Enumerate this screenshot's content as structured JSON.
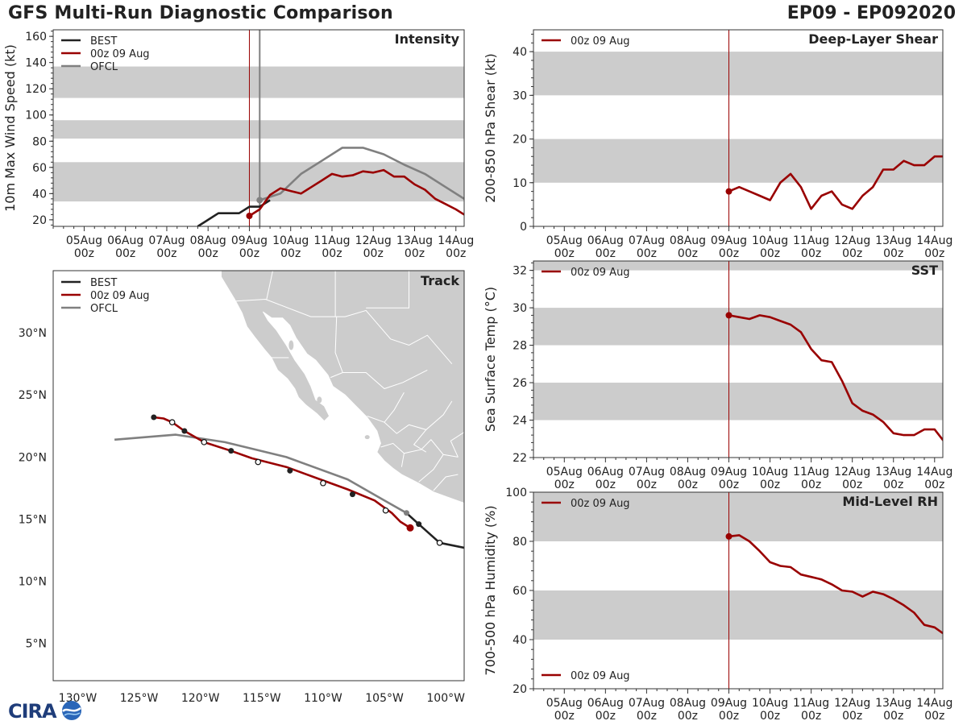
{
  "header": {
    "title": "GFS Multi-Run Diagnostic Comparison",
    "storm_id": "EP09 - EP092020"
  },
  "colors": {
    "best": "#222222",
    "run": "#990000",
    "ofcl": "#808080",
    "band": "#cccccc",
    "land": "#cccccc"
  },
  "time_axis": {
    "days": [
      "05Aug",
      "06Aug",
      "07Aug",
      "08Aug",
      "09Aug",
      "10Aug",
      "11Aug",
      "12Aug",
      "13Aug",
      "14Aug"
    ],
    "hour_label": "00z",
    "range": [
      -0.75,
      9.2
    ],
    "init_time": 4.0
  },
  "logo": {
    "text": "CIRA"
  },
  "chart_data": [
    {
      "id": "intensity",
      "type": "line",
      "title": "Intensity",
      "ylabel": "10m Max Wind Speed (kt)",
      "ylim": [
        15,
        165
      ],
      "yticks": [
        20,
        40,
        60,
        80,
        100,
        120,
        140,
        160
      ],
      "bands": [
        [
          34,
          64
        ],
        [
          82,
          96
        ],
        [
          113,
          137
        ]
      ],
      "extra_vline": 4.25,
      "legend": [
        "BEST",
        "00z 09 Aug",
        "OFCL"
      ],
      "series": [
        {
          "name": "BEST",
          "color": "best",
          "x": [
            2.75,
            3.0,
            3.25,
            3.5,
            3.75,
            4.0,
            4.25,
            4.5
          ],
          "y": [
            15,
            20,
            25,
            25,
            25,
            30,
            30,
            35
          ]
        },
        {
          "name": "OFCL",
          "color": "ofcl",
          "x": [
            4.25,
            4.75,
            5.25,
            5.75,
            6.25,
            6.75,
            7.25,
            7.75,
            8.25,
            8.75,
            9.25
          ],
          "y": [
            35,
            40,
            55,
            65,
            75,
            75,
            70,
            62,
            55,
            45,
            35
          ]
        },
        {
          "name": "00z 09 Aug",
          "color": "run",
          "x": [
            4.0,
            4.25,
            4.5,
            4.75,
            5.0,
            5.25,
            5.5,
            5.75,
            6.0,
            6.25,
            6.5,
            6.75,
            7.0,
            7.25,
            7.5,
            7.75,
            8.0,
            8.25,
            8.5,
            8.75,
            9.0,
            9.25
          ],
          "y": [
            23,
            28,
            39,
            44,
            42,
            40,
            45,
            50,
            55,
            53,
            54,
            57,
            56,
            58,
            53,
            53,
            47,
            43,
            36,
            32,
            28,
            23
          ]
        }
      ],
      "markers": [
        {
          "color": "ofcl",
          "x": 4.25,
          "y": 35
        },
        {
          "color": "run",
          "x": 4.0,
          "y": 23
        }
      ]
    },
    {
      "id": "shear",
      "type": "line",
      "title": "Deep-Layer Shear",
      "ylabel": "200-850 hPa Shear (kt)",
      "ylim": [
        0,
        45
      ],
      "yticks": [
        0,
        10,
        20,
        30,
        40
      ],
      "bands": [
        [
          10,
          20
        ],
        [
          30,
          40
        ]
      ],
      "legend": [
        "00z 09 Aug"
      ],
      "series": [
        {
          "name": "00z 09 Aug",
          "color": "run",
          "x": [
            4.0,
            4.25,
            4.5,
            4.75,
            5.0,
            5.25,
            5.5,
            5.75,
            6.0,
            6.25,
            6.5,
            6.75,
            7.0,
            7.25,
            7.5,
            7.75,
            8.0,
            8.25,
            8.5,
            8.75,
            9.0,
            9.25
          ],
          "y": [
            8,
            9,
            8,
            7,
            6,
            10,
            12,
            9,
            4,
            7,
            8,
            5,
            4,
            7,
            9,
            13,
            13,
            15,
            14,
            14,
            16,
            16
          ]
        }
      ],
      "markers": [
        {
          "color": "run",
          "x": 4.0,
          "y": 8
        }
      ]
    },
    {
      "id": "sst",
      "type": "line",
      "title": "SST",
      "ylabel": "Sea Surface Temp (°C)",
      "ylim": [
        22,
        32.5
      ],
      "yticks": [
        22,
        24,
        26,
        28,
        30,
        32
      ],
      "bands": [
        [
          24,
          26
        ],
        [
          28,
          30
        ],
        [
          32,
          33
        ]
      ],
      "legend": [
        "00z 09 Aug"
      ],
      "series": [
        {
          "name": "00z 09 Aug",
          "color": "run",
          "x": [
            4.0,
            4.25,
            4.5,
            4.75,
            5.0,
            5.25,
            5.5,
            5.75,
            6.0,
            6.25,
            6.5,
            6.75,
            7.0,
            7.25,
            7.5,
            7.75,
            8.0,
            8.25,
            8.5,
            8.75,
            9.0,
            9.25
          ],
          "y": [
            29.6,
            29.5,
            29.4,
            29.6,
            29.5,
            29.3,
            29.1,
            28.7,
            27.8,
            27.2,
            27.1,
            26.1,
            24.9,
            24.5,
            24.3,
            23.9,
            23.3,
            23.2,
            23.2,
            23.5,
            23.5,
            22.8
          ]
        }
      ],
      "markers": [
        {
          "color": "run",
          "x": 4.0,
          "y": 29.6
        }
      ]
    },
    {
      "id": "rh",
      "type": "line",
      "title": "Mid-Level RH",
      "ylabel": "700-500 hPa Humidity (%)",
      "ylim": [
        20,
        100
      ],
      "yticks": [
        20,
        40,
        60,
        80,
        100
      ],
      "bands": [
        [
          40,
          60
        ],
        [
          80,
          100
        ]
      ],
      "legend": [
        "00z 09 Aug"
      ],
      "series": [
        {
          "name": "00z 09 Aug",
          "color": "run",
          "x": [
            4.0,
            4.25,
            4.5,
            4.75,
            5.0,
            5.25,
            5.5,
            5.75,
            6.0,
            6.25,
            6.5,
            6.75,
            7.0,
            7.25,
            7.5,
            7.75,
            8.0,
            8.25,
            8.5,
            8.75,
            9.0,
            9.25
          ],
          "y": [
            82,
            82.5,
            80,
            76,
            71.5,
            70,
            69.5,
            66.5,
            65.5,
            64.5,
            62.5,
            60,
            59.5,
            57.5,
            59.5,
            58.5,
            56.5,
            54,
            51,
            46,
            45,
            42
          ]
        }
      ],
      "markers": [
        {
          "color": "run",
          "x": 4.0,
          "y": 82
        }
      ]
    },
    {
      "id": "track",
      "type": "map",
      "title": "Track",
      "legend": [
        "BEST",
        "00z 09 Aug",
        "OFCL"
      ],
      "lon_range": [
        -132,
        -98.5
      ],
      "lat_range": [
        2,
        35
      ],
      "lon_ticks": [
        -130,
        -125,
        -120,
        -115,
        -110,
        -105,
        -100
      ],
      "lon_labels": [
        "130°W",
        "125°W",
        "120°W",
        "115°W",
        "110°W",
        "105°W",
        "100°W"
      ],
      "lat_ticks": [
        5,
        10,
        15,
        20,
        25,
        30
      ],
      "lat_labels": [
        "5°N",
        "10°N",
        "15°N",
        "20°N",
        "25°N",
        "30°N"
      ],
      "tracks": [
        {
          "name": "OFCL",
          "color": "ofcl",
          "lon": [
            -127.0,
            -122.0,
            -118.0,
            -113.0,
            -108.0,
            -105.0,
            -103.2
          ],
          "lat": [
            21.4,
            21.8,
            21.2,
            20.0,
            18.2,
            16.5,
            15.5
          ],
          "points": [
            {
              "lon": -103.2,
              "lat": 15.5,
              "style": "filled"
            }
          ]
        },
        {
          "name": "BEST",
          "color": "best",
          "lon": [
            -98.5,
            -100.5,
            -102.2,
            -103.2
          ],
          "lat": [
            12.7,
            13.1,
            14.6,
            15.5
          ],
          "points": [
            {
              "lon": -100.5,
              "lat": 13.1,
              "style": "open"
            },
            {
              "lon": -102.2,
              "lat": 14.6,
              "style": "filled"
            }
          ]
        },
        {
          "name": "00z 09 Aug",
          "color": "run",
          "lon": [
            -123.8,
            -123.0,
            -122.3,
            -121.3,
            -119.7,
            -117.5,
            -115.8,
            -113.0,
            -110.5,
            -108.0,
            -105.8,
            -104.4,
            -103.7,
            -102.9
          ],
          "lat": [
            23.2,
            23.1,
            22.8,
            22.1,
            21.2,
            20.5,
            19.9,
            19.2,
            18.3,
            17.4,
            16.5,
            15.5,
            14.8,
            14.3
          ],
          "points": [
            {
              "lon": -123.8,
              "lat": 23.2,
              "style": "filled"
            },
            {
              "lon": -122.3,
              "lat": 22.8,
              "style": "open"
            },
            {
              "lon": -121.3,
              "lat": 22.1,
              "style": "filled"
            },
            {
              "lon": -119.7,
              "lat": 21.2,
              "style": "open"
            },
            {
              "lon": -117.5,
              "lat": 20.5,
              "style": "filled"
            },
            {
              "lon": -115.3,
              "lat": 19.6,
              "style": "open"
            },
            {
              "lon": -112.7,
              "lat": 18.9,
              "style": "filled"
            },
            {
              "lon": -110.0,
              "lat": 17.9,
              "style": "open"
            },
            {
              "lon": -107.6,
              "lat": 17.0,
              "style": "filled"
            },
            {
              "lon": -104.9,
              "lat": 15.7,
              "style": "open"
            },
            {
              "lon": -102.9,
              "lat": 14.3,
              "style": "bigdot"
            }
          ]
        }
      ]
    }
  ]
}
